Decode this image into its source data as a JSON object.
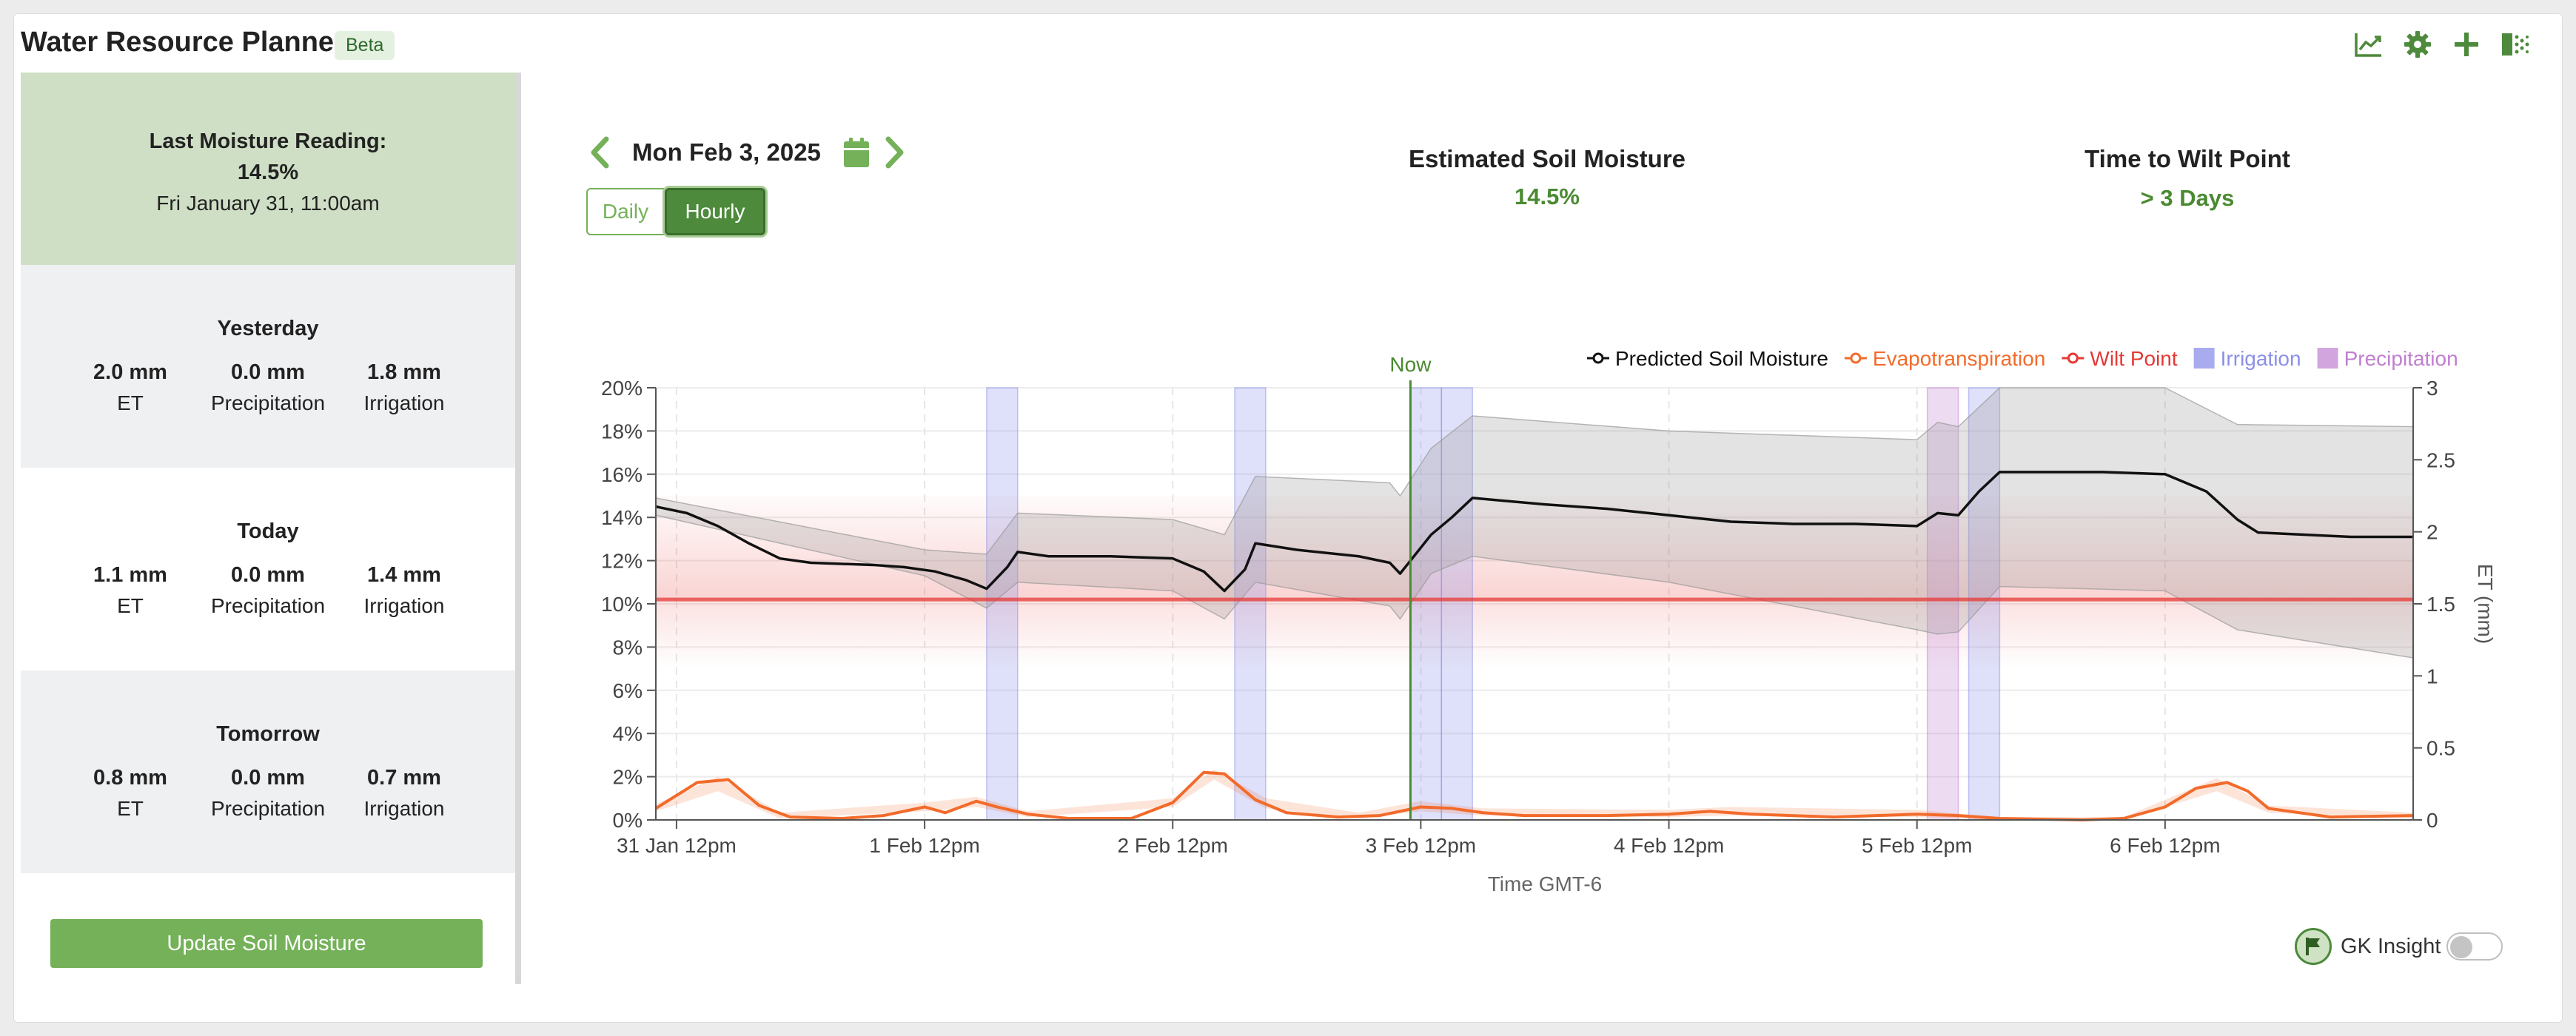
{
  "header": {
    "title": "Water Resource Planner",
    "badge": "Beta",
    "icons": [
      "chart-line-icon",
      "gear-icon",
      "plus-icon",
      "export-icon"
    ]
  },
  "colors": {
    "brand": "#4d8a3b",
    "accent": "#74b159",
    "reading_bg": "#cfdfc5",
    "et": "#f26b2b",
    "wilt": "#e53935",
    "irrigation": "#8b8fe8",
    "precipitation": "#c07fd0"
  },
  "last_reading": {
    "label": "Last Moisture Reading:",
    "value": "14.5%",
    "timestamp": "Fri January 31, 11:00am"
  },
  "days": [
    {
      "name": "Yesterday",
      "et": "2.0 mm",
      "precip": "0.0 mm",
      "irr": "1.8 mm"
    },
    {
      "name": "Today",
      "et": "1.1 mm",
      "precip": "0.0 mm",
      "irr": "1.4 mm"
    },
    {
      "name": "Tomorrow",
      "et": "0.8 mm",
      "precip": "0.0 mm",
      "irr": "0.7 mm"
    }
  ],
  "labels": {
    "et": "ET",
    "precip": "Precipitation",
    "irr": "Irrigation"
  },
  "update_button": "Update Soil Moisture",
  "nav": {
    "date": "Mon Feb 3, 2025",
    "daily": "Daily",
    "hourly": "Hourly",
    "selected_view": "Hourly"
  },
  "stats": {
    "moisture": {
      "title": "Estimated Soil Moisture",
      "value": "14.5%"
    },
    "wilt": {
      "title": "Time to Wilt Point",
      "value": "> 3 Days"
    }
  },
  "gk": {
    "label": "GK Insight",
    "enabled": false
  },
  "chart_data": {
    "type": "line",
    "legend": [
      "Predicted Soil Moisture",
      "Evapotranspiration",
      "Wilt Point",
      "Irrigation",
      "Precipitation"
    ],
    "legend_position": "top-right",
    "xlabel": "Time GMT-6",
    "ylabel": "",
    "y2label": "ET (mm)",
    "ylim": [
      0,
      20
    ],
    "y2lim": [
      0,
      3
    ],
    "xlim": [
      "2025-01-31T10:00",
      "2025-02-07T12:00"
    ],
    "x_ticks": [
      "31 Jan 12pm",
      "1 Feb 12pm",
      "2 Feb 12pm",
      "3 Feb 12pm",
      "4 Feb 12pm",
      "5 Feb 12pm",
      "6 Feb 12pm"
    ],
    "y_ticks": [
      "0%",
      "2%",
      "4%",
      "6%",
      "8%",
      "10%",
      "12%",
      "14%",
      "16%",
      "18%",
      "20%"
    ],
    "y2_ticks": [
      "0",
      "0.5",
      "1",
      "1.5",
      "2",
      "2.5",
      "3"
    ],
    "now_label": "Now",
    "now": "2025-02-03T11:00",
    "wilt_point": 10.2,
    "grid": true,
    "moisture": [
      [
        "2025-01-31T10:00",
        14.5
      ],
      [
        "2025-01-31T13:00",
        14.2
      ],
      [
        "2025-01-31T16:00",
        13.6
      ],
      [
        "2025-01-31T19:00",
        12.8
      ],
      [
        "2025-01-31T22:00",
        12.1
      ],
      [
        "2025-02-01T01:00",
        11.9
      ],
      [
        "2025-02-01T04:00",
        11.85
      ],
      [
        "2025-02-01T07:00",
        11.8
      ],
      [
        "2025-02-01T10:00",
        11.7
      ],
      [
        "2025-02-01T13:00",
        11.5
      ],
      [
        "2025-02-01T16:00",
        11.1
      ],
      [
        "2025-02-01T18:00",
        10.7
      ],
      [
        "2025-02-01T20:00",
        11.7
      ],
      [
        "2025-02-01T21:00",
        12.4
      ],
      [
        "2025-02-02T00:00",
        12.2
      ],
      [
        "2025-02-02T06:00",
        12.2
      ],
      [
        "2025-02-02T12:00",
        12.1
      ],
      [
        "2025-02-02T15:00",
        11.5
      ],
      [
        "2025-02-02T17:00",
        10.6
      ],
      [
        "2025-02-02T19:00",
        11.6
      ],
      [
        "2025-02-02T20:00",
        12.8
      ],
      [
        "2025-02-03T00:00",
        12.5
      ],
      [
        "2025-02-03T06:00",
        12.2
      ],
      [
        "2025-02-03T09:00",
        11.9
      ],
      [
        "2025-02-03T10:00",
        11.4
      ],
      [
        "2025-02-03T13:00",
        13.2
      ],
      [
        "2025-02-03T15:00",
        14.0
      ],
      [
        "2025-02-03T17:00",
        14.9
      ],
      [
        "2025-02-04T00:00",
        14.6
      ],
      [
        "2025-02-04T06:00",
        14.4
      ],
      [
        "2025-02-04T12:00",
        14.1
      ],
      [
        "2025-02-04T18:00",
        13.8
      ],
      [
        "2025-02-05T00:00",
        13.7
      ],
      [
        "2025-02-05T06:00",
        13.7
      ],
      [
        "2025-02-05T12:00",
        13.6
      ],
      [
        "2025-02-05T14:00",
        14.2
      ],
      [
        "2025-02-05T16:00",
        14.1
      ],
      [
        "2025-02-05T18:00",
        15.2
      ],
      [
        "2025-02-05T20:00",
        16.1
      ],
      [
        "2025-02-06T06:00",
        16.1
      ],
      [
        "2025-02-06T12:00",
        16.0
      ],
      [
        "2025-02-06T16:00",
        15.2
      ],
      [
        "2025-02-06T19:00",
        13.9
      ],
      [
        "2025-02-06T21:00",
        13.3
      ],
      [
        "2025-02-07T06:00",
        13.1
      ],
      [
        "2025-02-07T12:00",
        13.1
      ]
    ],
    "moisture_upper": [
      [
        "2025-01-31T10:00",
        14.9
      ],
      [
        "2025-02-01T12:00",
        12.5
      ],
      [
        "2025-02-01T18:00",
        12.3
      ],
      [
        "2025-02-01T21:00",
        14.2
      ],
      [
        "2025-02-02T12:00",
        13.9
      ],
      [
        "2025-02-02T17:00",
        13.2
      ],
      [
        "2025-02-02T20:00",
        15.9
      ],
      [
        "2025-02-03T09:00",
        15.6
      ],
      [
        "2025-02-03T10:00",
        15.0
      ],
      [
        "2025-02-03T13:00",
        17.2
      ],
      [
        "2025-02-03T17:00",
        18.7
      ],
      [
        "2025-02-04T12:00",
        18.0
      ],
      [
        "2025-02-05T12:00",
        17.6
      ],
      [
        "2025-02-05T14:00",
        18.4
      ],
      [
        "2025-02-05T16:00",
        18.2
      ],
      [
        "2025-02-05T20:00",
        20.0
      ],
      [
        "2025-02-06T12:00",
        20.0
      ],
      [
        "2025-02-06T19:00",
        18.3
      ],
      [
        "2025-02-07T12:00",
        18.2
      ]
    ],
    "moisture_lower": [
      [
        "2025-01-31T10:00",
        14.1
      ],
      [
        "2025-02-01T12:00",
        11.3
      ],
      [
        "2025-02-01T18:00",
        9.8
      ],
      [
        "2025-02-01T21:00",
        11.0
      ],
      [
        "2025-02-02T12:00",
        10.6
      ],
      [
        "2025-02-02T17:00",
        9.3
      ],
      [
        "2025-02-02T20:00",
        11.0
      ],
      [
        "2025-02-03T09:00",
        9.9
      ],
      [
        "2025-02-03T10:00",
        9.3
      ],
      [
        "2025-02-03T13:00",
        11.4
      ],
      [
        "2025-02-03T17:00",
        12.2
      ],
      [
        "2025-02-04T12:00",
        11.0
      ],
      [
        "2025-02-05T12:00",
        8.8
      ],
      [
        "2025-02-05T14:00",
        8.6
      ],
      [
        "2025-02-05T16:00",
        8.7
      ],
      [
        "2025-02-05T20:00",
        10.8
      ],
      [
        "2025-02-06T12:00",
        10.6
      ],
      [
        "2025-02-06T19:00",
        8.8
      ],
      [
        "2025-02-07T12:00",
        7.5
      ]
    ],
    "et": [
      [
        "2025-01-31T10:00",
        0.08
      ],
      [
        "2025-01-31T14:00",
        0.26
      ],
      [
        "2025-01-31T17:00",
        0.28
      ],
      [
        "2025-01-31T20:00",
        0.1
      ],
      [
        "2025-01-31T23:00",
        0.02
      ],
      [
        "2025-02-01T04:00",
        0.01
      ],
      [
        "2025-02-01T08:00",
        0.03
      ],
      [
        "2025-02-01T12:00",
        0.09
      ],
      [
        "2025-02-01T14:00",
        0.05
      ],
      [
        "2025-02-01T17:00",
        0.13
      ],
      [
        "2025-02-01T19:00",
        0.09
      ],
      [
        "2025-02-01T22:00",
        0.04
      ],
      [
        "2025-02-02T02:00",
        0.01
      ],
      [
        "2025-02-02T08:00",
        0.01
      ],
      [
        "2025-02-02T12:00",
        0.12
      ],
      [
        "2025-02-02T15:00",
        0.33
      ],
      [
        "2025-02-02T17:00",
        0.32
      ],
      [
        "2025-02-02T20:00",
        0.14
      ],
      [
        "2025-02-02T23:00",
        0.05
      ],
      [
        "2025-02-03T04:00",
        0.02
      ],
      [
        "2025-02-03T08:00",
        0.03
      ],
      [
        "2025-02-03T12:00",
        0.09
      ],
      [
        "2025-02-03T15:00",
        0.08
      ],
      [
        "2025-02-03T18:00",
        0.05
      ],
      [
        "2025-02-03T22:00",
        0.03
      ],
      [
        "2025-02-04T06:00",
        0.03
      ],
      [
        "2025-02-04T12:00",
        0.04
      ],
      [
        "2025-02-04T16:00",
        0.06
      ],
      [
        "2025-02-04T20:00",
        0.04
      ],
      [
        "2025-02-05T04:00",
        0.02
      ],
      [
        "2025-02-05T12:00",
        0.04
      ],
      [
        "2025-02-05T16:00",
        0.03
      ],
      [
        "2025-02-05T20:00",
        0.01
      ],
      [
        "2025-02-06T04:00",
        0.0
      ],
      [
        "2025-02-06T08:00",
        0.01
      ],
      [
        "2025-02-06T12:00",
        0.09
      ],
      [
        "2025-02-06T15:00",
        0.22
      ],
      [
        "2025-02-06T18:00",
        0.26
      ],
      [
        "2025-02-06T20:00",
        0.2
      ],
      [
        "2025-02-06T22:00",
        0.08
      ],
      [
        "2025-02-07T04:00",
        0.02
      ],
      [
        "2025-02-07T12:00",
        0.03
      ]
    ],
    "et_band_upper": [
      [
        "2025-01-31T10:00",
        0.11
      ],
      [
        "2025-01-31T16:00",
        0.3
      ],
      [
        "2025-01-31T22:00",
        0.05
      ],
      [
        "2025-02-01T12:00",
        0.12
      ],
      [
        "2025-02-01T17:00",
        0.16
      ],
      [
        "2025-02-01T22:00",
        0.06
      ],
      [
        "2025-02-02T12:00",
        0.15
      ],
      [
        "2025-02-02T16:00",
        0.35
      ],
      [
        "2025-02-02T21:00",
        0.15
      ],
      [
        "2025-02-03T06:00",
        0.05
      ],
      [
        "2025-02-03T12:00",
        0.13
      ],
      [
        "2025-02-03T18:00",
        0.08
      ],
      [
        "2025-02-04T12:00",
        0.07
      ],
      [
        "2025-02-04T18:00",
        0.09
      ],
      [
        "2025-02-05T12:00",
        0.07
      ],
      [
        "2025-02-05T20:00",
        0.02
      ],
      [
        "2025-02-06T08:00",
        0.02
      ],
      [
        "2025-02-06T17:00",
        0.29
      ],
      [
        "2025-02-06T22:00",
        0.1
      ],
      [
        "2025-02-07T12:00",
        0.05
      ]
    ],
    "et_band_lower": [
      [
        "2025-01-31T10:00",
        0.06
      ],
      [
        "2025-01-31T16:00",
        0.2
      ],
      [
        "2025-01-31T22:00",
        0.01
      ],
      [
        "2025-02-01T12:00",
        0.06
      ],
      [
        "2025-02-01T17:00",
        0.09
      ],
      [
        "2025-02-01T22:00",
        0.02
      ],
      [
        "2025-02-02T12:00",
        0.09
      ],
      [
        "2025-02-02T16:00",
        0.28
      ],
      [
        "2025-02-02T21:00",
        0.08
      ],
      [
        "2025-02-03T06:00",
        0.01
      ],
      [
        "2025-02-03T12:00",
        0.06
      ],
      [
        "2025-02-03T18:00",
        0.03
      ],
      [
        "2025-02-04T12:00",
        0.02
      ],
      [
        "2025-02-04T18:00",
        0.03
      ],
      [
        "2025-02-05T12:00",
        0.02
      ],
      [
        "2025-02-05T20:00",
        0.0
      ],
      [
        "2025-02-06T08:00",
        0.0
      ],
      [
        "2025-02-06T17:00",
        0.2
      ],
      [
        "2025-02-06T22:00",
        0.05
      ],
      [
        "2025-02-07T12:00",
        0.01
      ]
    ],
    "irrigation": [
      [
        "2025-02-01T18:00",
        "2025-02-01T21:00"
      ],
      [
        "2025-02-02T18:00",
        "2025-02-02T21:00"
      ],
      [
        "2025-02-03T11:00",
        "2025-02-03T14:00"
      ],
      [
        "2025-02-03T14:00",
        "2025-02-03T17:00"
      ],
      [
        "2025-02-05T17:00",
        "2025-02-05T20:00"
      ]
    ],
    "precipitation": [
      [
        "2025-02-05T13:00",
        "2025-02-05T16:00"
      ]
    ]
  }
}
